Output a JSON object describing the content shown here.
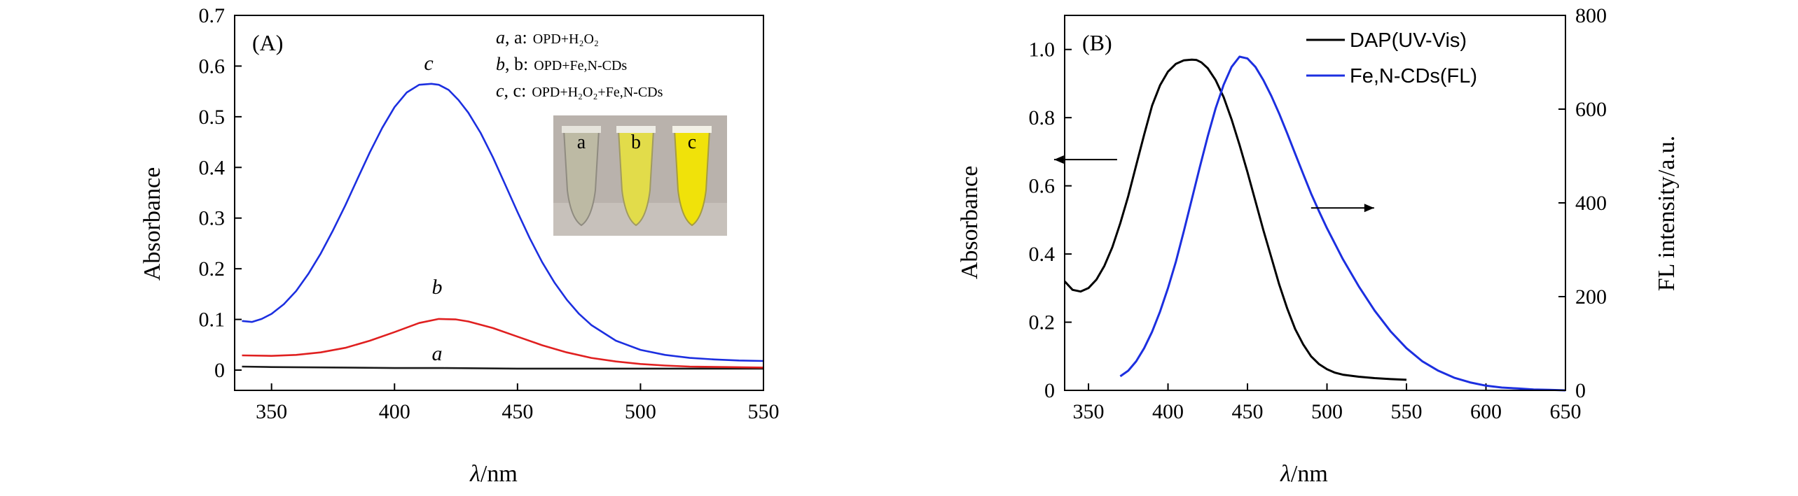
{
  "chart_data": [
    {
      "type": "line",
      "panel_label": "(A)",
      "xlabel_var": "λ",
      "xlabel_unit": "/nm",
      "ylabel": "Absorbance",
      "xlim": [
        335,
        550
      ],
      "ylim": [
        -0.04,
        0.7
      ],
      "xticks": [
        350,
        400,
        450,
        500,
        550
      ],
      "yticks": [
        0,
        0.1,
        0.2,
        0.3,
        0.4,
        0.5,
        0.6,
        0.7
      ],
      "ytick_labels": [
        "0",
        "0.1",
        "0.2",
        "0.3",
        "0.4",
        "0.5",
        "0.6",
        "0.7"
      ],
      "legend": [
        {
          "key": "a",
          "sep": ", a:",
          "text": "OPD+H₂O₂"
        },
        {
          "key": "b",
          "sep": ", b:",
          "text": "OPD+Fe,N-CDs"
        },
        {
          "key": "c",
          "sep": ", c:",
          "text": "OPD+H₂O₂+Fe,N-CDs"
        }
      ],
      "inset": {
        "tube_labels": [
          "a",
          "b",
          "c"
        ],
        "tube_colors": [
          "#bdbaa4",
          "#e2dc4a",
          "#f0e20a"
        ]
      },
      "series": [
        {
          "name": "a",
          "label": "a",
          "color": "#1a1a1a",
          "x": [
            338,
            350,
            380,
            400,
            420,
            450,
            500,
            550
          ],
          "y": [
            0.007,
            0.006,
            0.005,
            0.004,
            0.004,
            0.003,
            0.003,
            0.003
          ]
        },
        {
          "name": "b",
          "label": "b",
          "color": "#e02020",
          "x": [
            338,
            350,
            360,
            370,
            380,
            390,
            400,
            410,
            418,
            425,
            430,
            440,
            450,
            460,
            470,
            480,
            490,
            500,
            510,
            520,
            535,
            550
          ],
          "y": [
            0.029,
            0.028,
            0.03,
            0.035,
            0.044,
            0.058,
            0.075,
            0.093,
            0.101,
            0.1,
            0.096,
            0.083,
            0.066,
            0.049,
            0.035,
            0.024,
            0.017,
            0.012,
            0.009,
            0.007,
            0.006,
            0.005
          ]
        },
        {
          "name": "c",
          "label": "c",
          "color": "#1c2fe0",
          "x": [
            338,
            342,
            346,
            350,
            355,
            360,
            365,
            370,
            375,
            380,
            385,
            390,
            395,
            400,
            405,
            410,
            415,
            418,
            422,
            426,
            430,
            435,
            440,
            445,
            450,
            455,
            460,
            465,
            470,
            475,
            480,
            490,
            500,
            510,
            520,
            530,
            540,
            550
          ],
          "y": [
            0.097,
            0.095,
            0.101,
            0.111,
            0.13,
            0.156,
            0.19,
            0.23,
            0.276,
            0.325,
            0.378,
            0.43,
            0.478,
            0.519,
            0.548,
            0.563,
            0.565,
            0.563,
            0.553,
            0.533,
            0.508,
            0.468,
            0.42,
            0.366,
            0.312,
            0.26,
            0.213,
            0.173,
            0.139,
            0.111,
            0.089,
            0.058,
            0.04,
            0.03,
            0.024,
            0.021,
            0.019,
            0.018
          ]
        }
      ]
    },
    {
      "type": "line",
      "panel_label": "(B)",
      "xlabel_var": "λ",
      "xlabel_unit": "/nm",
      "ylabel": "Absorbance",
      "y2label": "FL intensity/a.u.",
      "xlim": [
        335,
        650
      ],
      "ylim": [
        0,
        1.1
      ],
      "y2lim": [
        0,
        800
      ],
      "xticks": [
        350,
        400,
        450,
        500,
        550,
        600,
        650
      ],
      "yticks": [
        0,
        0.2,
        0.4,
        0.6,
        0.8,
        1.0
      ],
      "ytick_labels": [
        "0",
        "0.2",
        "0.4",
        "0.6",
        "0.8",
        "1.0"
      ],
      "y2ticks": [
        0,
        200,
        400,
        600,
        800
      ],
      "legend": [
        {
          "name": "DAP(UV-Vis)",
          "color": "#000000"
        },
        {
          "name": "Fe,N-CDs(FL)",
          "color": "#1c2fe0"
        }
      ],
      "series": [
        {
          "name": "DAP(UV-Vis)",
          "axis": "left",
          "color": "#000000",
          "x": [
            335,
            340,
            345,
            350,
            355,
            360,
            365,
            370,
            375,
            380,
            385,
            390,
            395,
            400,
            405,
            410,
            415,
            418,
            421,
            425,
            430,
            435,
            440,
            445,
            450,
            455,
            460,
            465,
            470,
            475,
            480,
            485,
            490,
            495,
            500,
            505,
            510,
            520,
            530,
            540,
            550
          ],
          "y": [
            0.32,
            0.295,
            0.29,
            0.3,
            0.325,
            0.365,
            0.42,
            0.49,
            0.57,
            0.66,
            0.75,
            0.835,
            0.895,
            0.935,
            0.958,
            0.968,
            0.97,
            0.969,
            0.962,
            0.945,
            0.91,
            0.86,
            0.795,
            0.72,
            0.64,
            0.555,
            0.47,
            0.39,
            0.31,
            0.24,
            0.18,
            0.135,
            0.1,
            0.077,
            0.062,
            0.052,
            0.046,
            0.04,
            0.036,
            0.033,
            0.031
          ]
        },
        {
          "name": "Fe,N-CDs(FL)",
          "axis": "right",
          "color": "#1c2fe0",
          "x": [
            370,
            375,
            380,
            385,
            390,
            395,
            400,
            405,
            410,
            415,
            420,
            425,
            430,
            435,
            440,
            445,
            450,
            455,
            460,
            465,
            470,
            475,
            480,
            485,
            490,
            495,
            500,
            510,
            520,
            530,
            540,
            550,
            560,
            570,
            580,
            590,
            600,
            610,
            620,
            630,
            640,
            650
          ],
          "y": [
            30,
            42,
            62,
            90,
            125,
            168,
            218,
            275,
            340,
            408,
            476,
            542,
            602,
            652,
            690,
            712,
            708,
            690,
            662,
            628,
            590,
            548,
            505,
            462,
            420,
            382,
            346,
            280,
            222,
            170,
            126,
            90,
            62,
            42,
            27,
            17,
            10,
            6,
            4,
            2,
            1,
            0
          ]
        }
      ],
      "arrows": [
        {
          "direction": "left",
          "at_x": 368,
          "at_y": 0.677
        },
        {
          "direction": "right",
          "at_x": 490,
          "at_y": 0.535
        }
      ]
    }
  ]
}
